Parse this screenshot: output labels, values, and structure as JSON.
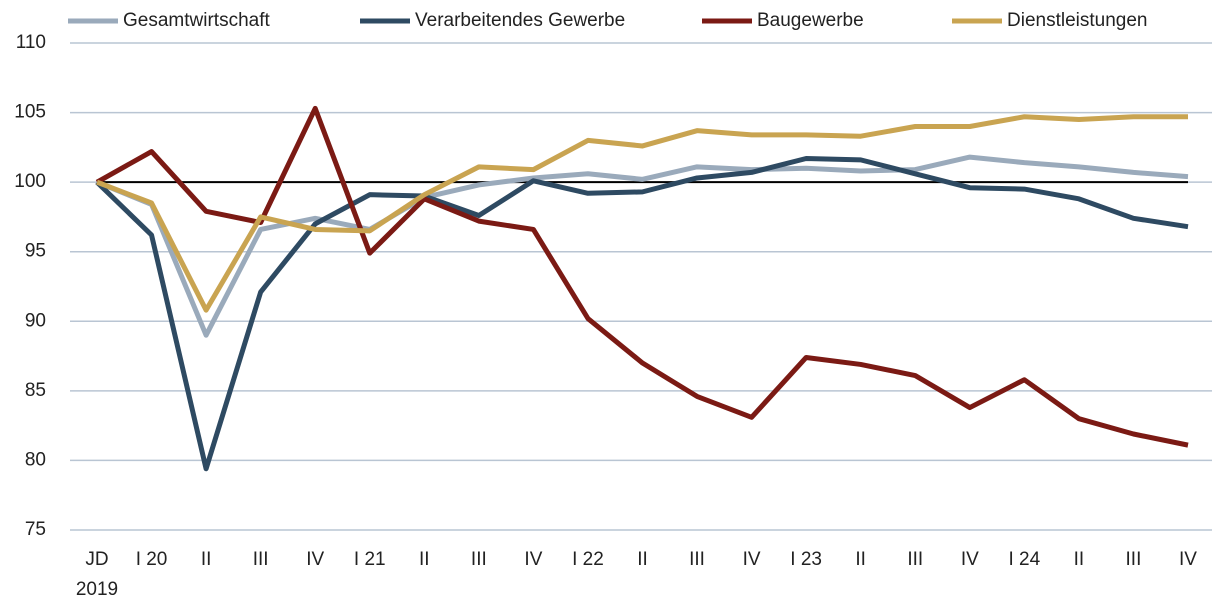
{
  "chart_data": {
    "type": "line",
    "categories": [
      "JD\n2019",
      "I 20",
      "II",
      "III",
      "IV",
      "I 21",
      "II",
      "III",
      "IV",
      "I 22",
      "II",
      "III",
      "IV",
      "I 23",
      "II",
      "III",
      "IV",
      "I 24",
      "II",
      "III",
      "IV"
    ],
    "series": [
      {
        "name": "Gesamtwirtschaft",
        "color": "#9aaabb",
        "values": [
          100,
          98.4,
          89.0,
          96.6,
          97.4,
          96.6,
          98.9,
          99.8,
          100.3,
          100.6,
          100.2,
          101.1,
          100.9,
          101.0,
          100.8,
          100.9,
          101.8,
          101.4,
          101.1,
          100.7,
          100.4
        ]
      },
      {
        "name": "Verarbeitendes Gewerbe",
        "color": "#2e4a62",
        "values": [
          100,
          96.2,
          79.4,
          92.1,
          97.0,
          99.1,
          99.0,
          97.6,
          100.1,
          99.2,
          99.3,
          100.3,
          100.7,
          101.7,
          101.6,
          100.6,
          99.6,
          99.5,
          98.8,
          97.4,
          96.8
        ]
      },
      {
        "name": "Baugewerbe",
        "color": "#7b1a14",
        "values": [
          100,
          102.2,
          97.9,
          97.1,
          105.3,
          94.9,
          98.8,
          97.2,
          96.6,
          90.2,
          87.0,
          84.6,
          83.1,
          87.4,
          86.9,
          86.1,
          83.8,
          85.8,
          83.0,
          81.9,
          81.1
        ]
      },
      {
        "name": "Dienstleistungen",
        "color": "#c9a451",
        "values": [
          100,
          98.5,
          90.8,
          97.5,
          96.6,
          96.5,
          99.1,
          101.1,
          100.9,
          103.0,
          102.6,
          103.7,
          103.4,
          103.4,
          103.3,
          104.0,
          104.0,
          104.7,
          104.5,
          104.7,
          104.7
        ]
      }
    ],
    "ylim": [
      75,
      110
    ],
    "yticks": [
      75,
      80,
      85,
      90,
      95,
      100,
      105,
      110
    ],
    "reference_line": 100,
    "grid": true,
    "legend": "top"
  }
}
